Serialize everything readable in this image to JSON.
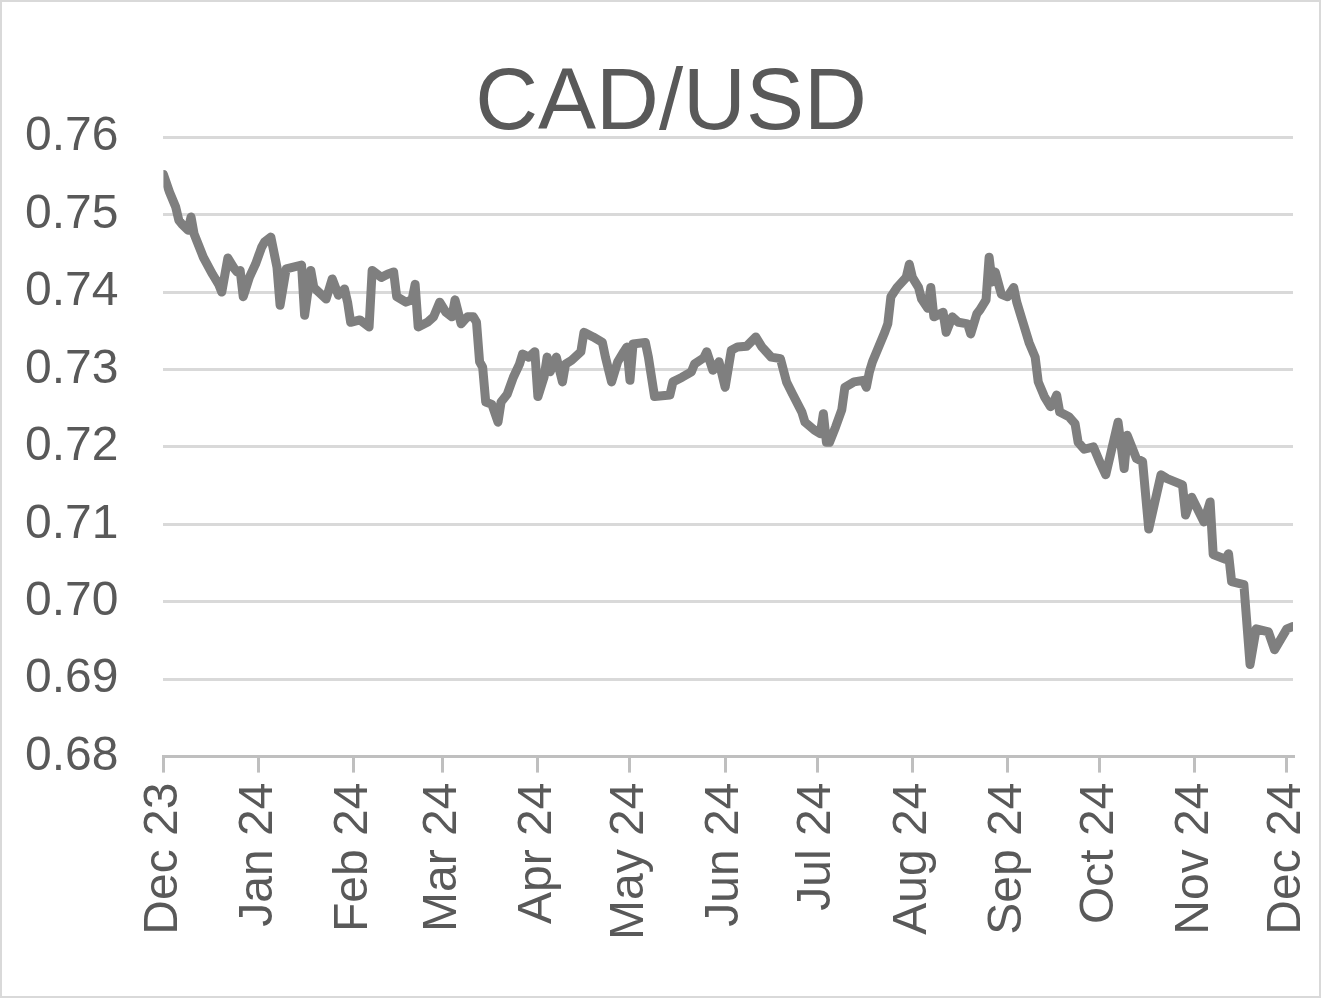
{
  "chart_data": {
    "type": "line",
    "title": "CAD/USD",
    "x": [
      "2023-12-01",
      "2023-12-03",
      "2023-12-05",
      "2023-12-06",
      "2023-12-07",
      "2023-12-09",
      "2023-12-10",
      "2023-12-11",
      "2023-12-12",
      "2023-12-14",
      "2023-12-17",
      "2023-12-19",
      "2023-12-20",
      "2023-12-22",
      "2023-12-24",
      "2023-12-25",
      "2023-12-26",
      "2023-12-27",
      "2023-12-29",
      "2023-12-31",
      "2024-01-02",
      "2024-01-03",
      "2024-01-05",
      "2024-01-07",
      "2024-01-08",
      "2024-01-10",
      "2024-01-12",
      "2024-01-15",
      "2024-01-16",
      "2024-01-18",
      "2024-01-19",
      "2024-01-23",
      "2024-01-25",
      "2024-01-27",
      "2024-01-29",
      "2024-01-30",
      "2024-01-31",
      "2024-02-03",
      "2024-02-06",
      "2024-02-07",
      "2024-02-10",
      "2024-02-12",
      "2024-02-14",
      "2024-02-15",
      "2024-02-18",
      "2024-02-20",
      "2024-02-21",
      "2024-02-22",
      "2024-02-25",
      "2024-02-27",
      "2024-02-29",
      "2024-03-02",
      "2024-03-04",
      "2024-03-05",
      "2024-03-07",
      "2024-03-09",
      "2024-03-11",
      "2024-03-12",
      "2024-03-13",
      "2024-03-14",
      "2024-03-15",
      "2024-03-17",
      "2024-03-19",
      "2024-03-20",
      "2024-03-22",
      "2024-03-24",
      "2024-03-26",
      "2024-03-27",
      "2024-03-29",
      "2024-03-31",
      "2024-04-01",
      "2024-04-03",
      "2024-04-04",
      "2024-04-05",
      "2024-04-07",
      "2024-04-09",
      "2024-04-10",
      "2024-04-12",
      "2024-04-15",
      "2024-04-16",
      "2024-04-19",
      "2024-04-22",
      "2024-04-23",
      "2024-04-25",
      "2024-04-27",
      "2024-04-29",
      "2024-04-30",
      "2024-05-01",
      "2024-05-02",
      "2024-05-06",
      "2024-05-07",
      "2024-05-09",
      "2024-05-14",
      "2024-05-15",
      "2024-05-18",
      "2024-05-21",
      "2024-05-22",
      "2024-05-25",
      "2024-05-26",
      "2024-05-28",
      "2024-05-30",
      "2024-06-01",
      "2024-06-03",
      "2024-06-05",
      "2024-06-08",
      "2024-06-11",
      "2024-06-13",
      "2024-06-16",
      "2024-06-19",
      "2024-06-21",
      "2024-06-23",
      "2024-06-26",
      "2024-06-27",
      "2024-06-30",
      "2024-07-02",
      "2024-07-03",
      "2024-07-04",
      "2024-07-05",
      "2024-07-07",
      "2024-07-09",
      "2024-07-10",
      "2024-07-13",
      "2024-07-16",
      "2024-07-17",
      "2024-07-18",
      "2024-07-19",
      "2024-07-21",
      "2024-07-23",
      "2024-07-24",
      "2024-07-25",
      "2024-07-27",
      "2024-07-30",
      "2024-07-31",
      "2024-08-01",
      "2024-08-03",
      "2024-08-04",
      "2024-08-06",
      "2024-08-07",
      "2024-08-08",
      "2024-08-11",
      "2024-08-12",
      "2024-08-14",
      "2024-08-16",
      "2024-08-19",
      "2024-08-20",
      "2024-08-22",
      "2024-08-23",
      "2024-08-25",
      "2024-08-26",
      "2024-08-27",
      "2024-08-28",
      "2024-08-30",
      "2024-09-01",
      "2024-09-03",
      "2024-09-04",
      "2024-09-06",
      "2024-09-08",
      "2024-09-10",
      "2024-09-11",
      "2024-09-13",
      "2024-09-15",
      "2024-09-16",
      "2024-09-17",
      "2024-09-18",
      "2024-09-21",
      "2024-09-23",
      "2024-09-24",
      "2024-09-26",
      "2024-09-29",
      "2024-10-01",
      "2024-10-03",
      "2024-10-07",
      "2024-10-09",
      "2024-10-10",
      "2024-10-13",
      "2024-10-15",
      "2024-10-17",
      "2024-10-21",
      "2024-10-23",
      "2024-10-28",
      "2024-10-29",
      "2024-10-31",
      "2024-11-04",
      "2024-11-06",
      "2024-11-07",
      "2024-11-11",
      "2024-11-12",
      "2024-11-13",
      "2024-11-17",
      "2024-11-19",
      "2024-11-21",
      "2024-11-25",
      "2024-11-27",
      "2024-12-01",
      "2024-12-03"
    ],
    "series": [
      {
        "color": "#7f7f7f",
        "values": [
          0.7552,
          0.7529,
          0.751,
          0.7493,
          0.7488,
          0.748,
          0.7497,
          0.7475,
          0.7465,
          0.7445,
          0.7423,
          0.741,
          0.74,
          0.7444,
          0.7431,
          0.7426,
          0.7428,
          0.7394,
          0.7419,
          0.7436,
          0.7458,
          0.7465,
          0.7471,
          0.7432,
          0.7383,
          0.743,
          0.7432,
          0.7435,
          0.737,
          0.7428,
          0.7406,
          0.7391,
          0.7417,
          0.7396,
          0.7404,
          0.7387,
          0.7361,
          0.7364,
          0.7355,
          0.7428,
          0.7419,
          0.7423,
          0.7426,
          0.7394,
          0.7387,
          0.739,
          0.741,
          0.7355,
          0.7361,
          0.7368,
          0.7387,
          0.7374,
          0.7368,
          0.739,
          0.7359,
          0.7368,
          0.7368,
          0.7361,
          0.731,
          0.7303,
          0.7258,
          0.7255,
          0.7232,
          0.7258,
          0.7268,
          0.729,
          0.7307,
          0.732,
          0.7316,
          0.7323,
          0.7265,
          0.729,
          0.7316,
          0.7297,
          0.7316,
          0.7284,
          0.7307,
          0.7312,
          0.7323,
          0.7348,
          0.7342,
          0.7335,
          0.7316,
          0.7284,
          0.731,
          0.7323,
          0.7329,
          0.7286,
          0.7333,
          0.7335,
          0.7316,
          0.7265,
          0.7267,
          0.7284,
          0.729,
          0.7297,
          0.7307,
          0.7315,
          0.7323,
          0.7299,
          0.731,
          0.7277,
          0.7325,
          0.7329,
          0.733,
          0.7342,
          0.7329,
          0.7316,
          0.7314,
          0.7284,
          0.7268,
          0.7245,
          0.7232,
          0.7222,
          0.7217,
          0.7243,
          0.7206,
          0.7206,
          0.7226,
          0.7248,
          0.7277,
          0.7284,
          0.7286,
          0.7277,
          0.7297,
          0.731,
          0.7329,
          0.7348,
          0.7359,
          0.7394,
          0.7406,
          0.7419,
          0.7436,
          0.7419,
          0.7406,
          0.7391,
          0.7379,
          0.7406,
          0.7368,
          0.7374,
          0.7348,
          0.7368,
          0.7361,
          0.7359,
          0.7346,
          0.7372,
          0.7377,
          0.739,
          0.7445,
          0.7413,
          0.7426,
          0.7397,
          0.7394,
          0.7406,
          0.7387,
          0.7361,
          0.7335,
          0.7316,
          0.7284,
          0.7265,
          0.7252,
          0.7258,
          0.7267,
          0.7245,
          0.7239,
          0.723,
          0.7206,
          0.7197,
          0.72,
          0.7181,
          0.7164,
          0.7232,
          0.7172,
          0.7215,
          0.7185,
          0.7181,
          0.7094,
          0.7164,
          0.7159,
          0.7151,
          0.7112,
          0.7135,
          0.7103,
          0.7129,
          0.7061,
          0.7055,
          0.7062,
          0.7026,
          0.7022,
          0.6919,
          0.6965,
          0.6961,
          0.6938,
          0.6965,
          0.6968
        ]
      }
    ],
    "xlim": [
      "2023-12-01",
      "2024-12-03"
    ],
    "xticks": [
      {
        "value": "2023-12-01",
        "label": "Dec 23"
      },
      {
        "value": "2024-01-01",
        "label": "Jan 24"
      },
      {
        "value": "2024-02-01",
        "label": "Feb 24"
      },
      {
        "value": "2024-03-01",
        "label": "Mar 24"
      },
      {
        "value": "2024-04-01",
        "label": "Apr 24"
      },
      {
        "value": "2024-05-01",
        "label": "May 24"
      },
      {
        "value": "2024-06-01",
        "label": "Jun 24"
      },
      {
        "value": "2024-07-01",
        "label": "Jul 24"
      },
      {
        "value": "2024-08-01",
        "label": "Aug 24"
      },
      {
        "value": "2024-09-01",
        "label": "Sep 24"
      },
      {
        "value": "2024-10-01",
        "label": "Oct 24"
      },
      {
        "value": "2024-11-01",
        "label": "Nov 24"
      },
      {
        "value": "2024-12-01",
        "label": "Dec 24"
      }
    ],
    "ylim": [
      0.68,
      0.76
    ],
    "yticks": [
      0.68,
      0.69,
      {
        "value": 0.7,
        "label": "0.70"
      },
      0.71,
      0.72,
      0.73,
      0.74,
      0.75,
      0.76
    ],
    "grid": "y",
    "marker": "none",
    "line_style": "solid"
  }
}
